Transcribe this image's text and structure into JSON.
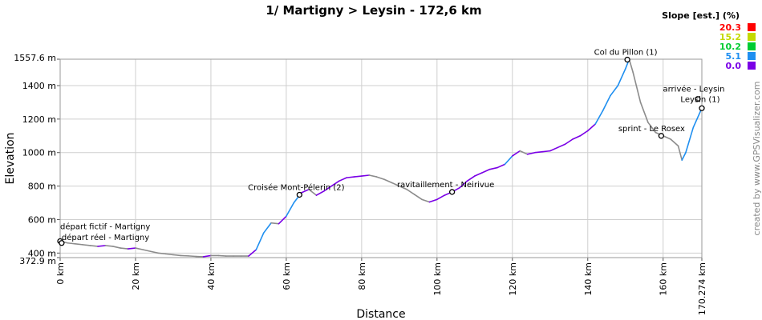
{
  "chart_data": {
    "type": "line",
    "title": "1/ Martigny > Leysin - 172,6 km",
    "xlabel": "Distance",
    "ylabel": "Elevation",
    "xlim": [
      0,
      170.274
    ],
    "ylim": [
      372.9,
      1557.6
    ],
    "x_ticks": [
      {
        "value": 0,
        "label": "0 km"
      },
      {
        "value": 20,
        "label": "20 km"
      },
      {
        "value": 40,
        "label": "40 km"
      },
      {
        "value": 60,
        "label": "60 km"
      },
      {
        "value": 80,
        "label": "80 km"
      },
      {
        "value": 100,
        "label": "100 km"
      },
      {
        "value": 120,
        "label": "120 km"
      },
      {
        "value": 140,
        "label": "140 km"
      },
      {
        "value": 160,
        "label": "160 km"
      },
      {
        "value": 170.274,
        "label": "170.274 km"
      }
    ],
    "y_ticks": [
      {
        "value": 372.9,
        "label": "372.9 m"
      },
      {
        "value": 400,
        "label": "400 m"
      },
      {
        "value": 600,
        "label": "600 m"
      },
      {
        "value": 800,
        "label": "800 m"
      },
      {
        "value": 1000,
        "label": "1000 m"
      },
      {
        "value": 1200,
        "label": "1200 m"
      },
      {
        "value": 1400,
        "label": "1400 m"
      },
      {
        "value": 1557.6,
        "label": "1557.6 m"
      }
    ],
    "grid": true,
    "series": [
      {
        "x": [
          0,
          2,
          4,
          6,
          8,
          10,
          12,
          14,
          16,
          18,
          20,
          22,
          24,
          26,
          28,
          30,
          32,
          34,
          36,
          38,
          40,
          42,
          44,
          46,
          48,
          50,
          52,
          54,
          56,
          58,
          60,
          62,
          64,
          66,
          68,
          70,
          72,
          74,
          76,
          78,
          80,
          82,
          84,
          86,
          88,
          90,
          92,
          94,
          96,
          98,
          100,
          102,
          104,
          106,
          108,
          110,
          112,
          114,
          116,
          118,
          120,
          122,
          124,
          126,
          128,
          130,
          132,
          134,
          136,
          138,
          140,
          142,
          144,
          146,
          148,
          150,
          151,
          152,
          154,
          156,
          158,
          160,
          162,
          164,
          165,
          166,
          168,
          170.274
        ],
        "y": [
          471,
          460,
          455,
          450,
          445,
          440,
          445,
          440,
          430,
          425,
          430,
          420,
          410,
          400,
          395,
          390,
          385,
          383,
          380,
          378,
          385,
          385,
          382,
          382,
          382,
          382,
          420,
          520,
          580,
          575,
          620,
          700,
          760,
          780,
          745,
          770,
          800,
          830,
          850,
          855,
          860,
          865,
          855,
          840,
          820,
          800,
          780,
          750,
          720,
          705,
          720,
          745,
          765,
          790,
          830,
          860,
          880,
          900,
          910,
          930,
          980,
          1010,
          990,
          1000,
          1005,
          1010,
          1030,
          1050,
          1080,
          1100,
          1130,
          1170,
          1250,
          1340,
          1400,
          1500,
          1557,
          1480,
          1300,
          1180,
          1120,
          1100,
          1080,
          1040,
          955,
          1000,
          1150,
          1265
        ]
      }
    ],
    "waypoints": [
      {
        "x": 0,
        "y": 471,
        "label": "départ fictif - Martigny"
      },
      {
        "x": 0.4,
        "y": 460,
        "label": "départ réel - Martigny"
      },
      {
        "x": 63.5,
        "y": 748,
        "label": "Croisée Mont-Pélerin (2)"
      },
      {
        "x": 104,
        "y": 765,
        "label": "ravitaillement - Neirivue"
      },
      {
        "x": 150.5,
        "y": 1555,
        "label": "Col du Pillon (1)"
      },
      {
        "x": 159.5,
        "y": 1100,
        "label": "sprint - Le Rosex"
      },
      {
        "x": 169.2,
        "y": 1320,
        "label": "arrivée - Leysin"
      },
      {
        "x": 170.274,
        "y": 1265,
        "label": "Leysin (1)"
      }
    ],
    "legend": {
      "title": "Slope [est.] (%)",
      "placement": "top-right",
      "items": [
        {
          "value": "20.3",
          "color": "#ff0000"
        },
        {
          "value": "15.2",
          "color": "#c4d900"
        },
        {
          "value": "10.2",
          "color": "#00cc33"
        },
        {
          "value": "5.1",
          "color": "#1f8ff0"
        },
        {
          "value": "0.0",
          "color": "#7a00e6"
        }
      ]
    },
    "credit": "created by www.GPSVisualizer.com"
  }
}
